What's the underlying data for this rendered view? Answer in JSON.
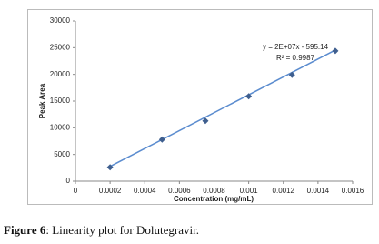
{
  "chart_data": {
    "type": "scatter",
    "x_label": "Concentration (mg/mL)",
    "y_label": "Peak Area",
    "xlim": [
      0,
      0.0016
    ],
    "xticks": [
      0,
      0.0002,
      0.0004,
      0.0006,
      0.0008,
      0.001,
      0.0012,
      0.0014,
      0.0016
    ],
    "ylim": [
      0,
      30000
    ],
    "yticks": [
      0,
      5000,
      10000,
      15000,
      20000,
      25000,
      30000
    ],
    "series": [
      {
        "name": "Peak Area",
        "color": "#3f5f8f",
        "x": [
          0.0002,
          0.0005,
          0.00075,
          0.001,
          0.00125,
          0.0015
        ],
        "values": [
          2600,
          7800,
          11300,
          15900,
          19900,
          24400
        ]
      }
    ],
    "trendline": {
      "color": "#5b8ccf",
      "x": [
        0.0002,
        0.0015
      ],
      "values": [
        2760,
        24560
      ]
    },
    "annotations": [
      "y = 2E+07x - 595.14",
      "R² = 0.9987"
    ]
  },
  "caption": {
    "label": "Figure 6",
    "text": ": Linearity plot for Dolutegravir."
  }
}
